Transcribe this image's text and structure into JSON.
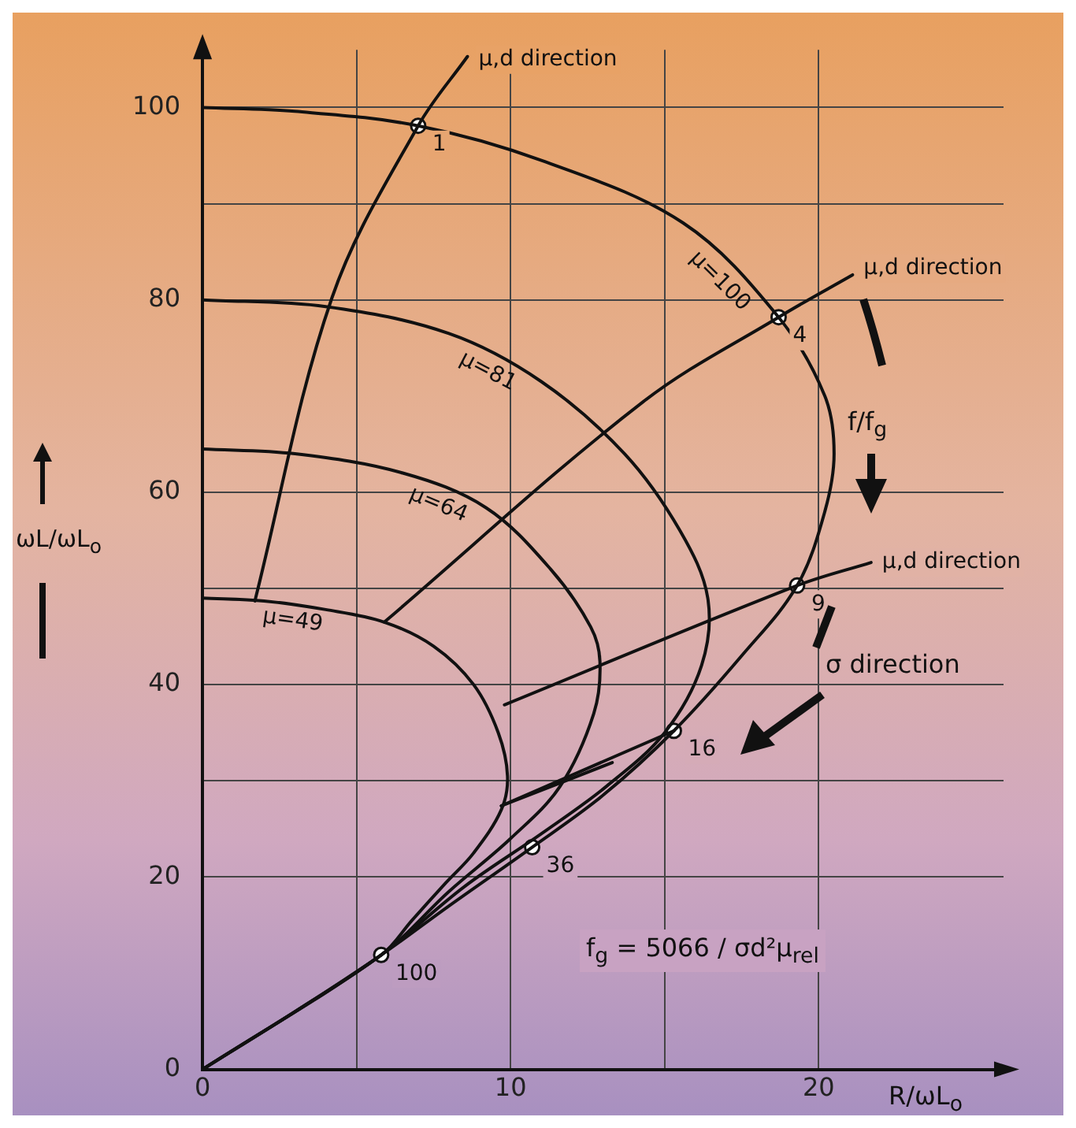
{
  "chart_data": {
    "type": "line",
    "xlabel": "R/ωL$_{o}$",
    "ylabel": "ωL/ωL$_{o}$",
    "xlim": [
      0,
      26
    ],
    "ylim": [
      0,
      106
    ],
    "xticks": [
      0,
      {
        "value": 5,
        "label": null
      },
      10,
      {
        "value": 15,
        "label": null
      },
      20
    ],
    "yticks": [
      0,
      20,
      {
        "value": 30,
        "label": null
      },
      40,
      {
        "value": 50,
        "label": null
      },
      60,
      80,
      {
        "value": 90,
        "label": null
      },
      100
    ],
    "grid": true,
    "legend": false,
    "series": [
      {
        "name": "μ=100",
        "color": "#111111",
        "marker": "none",
        "x": [
          0,
          3,
          7,
          11,
          15.6,
          18.7,
          20.2,
          20.5,
          20.2,
          19.3,
          17.5,
          15.3,
          13,
          10.7,
          8,
          5.8,
          3,
          0
        ],
        "values": [
          100,
          99.6,
          98.1,
          94.5,
          88,
          78.2,
          70,
          64,
          58,
          50.3,
          43,
          35.2,
          28.5,
          23.1,
          17,
          11.9,
          6,
          0
        ]
      },
      {
        "name": "μ=81",
        "color": "#111111",
        "marker": "none",
        "x": [
          0,
          4,
          8,
          11,
          13.7,
          15.5,
          16.4,
          16.2,
          15,
          13.1,
          11,
          8.5,
          5.8,
          3,
          0
        ],
        "values": [
          80,
          79.3,
          76.5,
          71.5,
          64,
          56,
          49,
          42,
          35,
          29.4,
          24.5,
          19,
          11.9,
          6,
          0
        ]
      },
      {
        "name": "μ=64",
        "color": "#111111",
        "marker": "none",
        "x": [
          0,
          3,
          6.5,
          9.2,
          11.3,
          12.6,
          12.9,
          12.7,
          11.6,
          10,
          8,
          5.8,
          0
        ],
        "values": [
          64.5,
          64,
          62,
          58.4,
          52,
          46,
          42.4,
          37,
          29.4,
          24,
          18.5,
          11.9,
          0
        ]
      },
      {
        "name": "μ=49",
        "color": "#111111",
        "marker": "none",
        "x": [
          0,
          2,
          4,
          5.9,
          7.5,
          8.8,
          9.6,
          9.9,
          9.7,
          8.8,
          7.9,
          6.8,
          5.8,
          0
        ],
        "values": [
          49,
          48.7,
          47.8,
          46.5,
          44,
          40,
          35,
          30.5,
          27,
          22.5,
          19.4,
          15.5,
          11.9,
          0
        ]
      },
      {
        "name": "μ,d direction",
        "color": "#111111",
        "marker": "none",
        "x": [
          1.7,
          4.2,
          7,
          8.6
        ],
        "values": [
          48.7,
          80.2,
          98.1,
          105.3
        ]
      },
      {
        "name": "μ,d direction",
        "color": "#111111",
        "marker": "none",
        "x": [
          5.9,
          14.3,
          18.7,
          21.1
        ],
        "values": [
          46.5,
          69.4,
          78.2,
          82.6
        ]
      },
      {
        "name": "μ,d direction",
        "color": "#111111",
        "marker": "none",
        "x": [
          9.8,
          19.3,
          21.7
        ],
        "values": [
          37.9,
          50.3,
          52.7
        ]
      },
      {
        "color": "#111111",
        "marker": "none",
        "x": [
          9.7,
          15.3
        ],
        "values": [
          27.4,
          35.2
        ]
      },
      {
        "color": "#111111",
        "marker": "none",
        "x": [
          9.7,
          13.3
        ],
        "values": [
          27.4,
          31.9
        ]
      },
      {
        "type": "scatter",
        "color": "#111111",
        "marker": "circle",
        "x": [
          7,
          18.7,
          19.3,
          15.3,
          10.7,
          5.8
        ],
        "values": [
          98.1,
          78.2,
          50.3,
          35.2,
          23.1,
          11.9
        ]
      }
    ],
    "annotations": [
      {
        "text": "1",
        "x": 7,
        "y": 98.1
      },
      {
        "text": "4",
        "x": 18.7,
        "y": 78.2
      },
      {
        "text": "9",
        "x": 19.3,
        "y": 50.3
      },
      {
        "text": "16",
        "x": 15.3,
        "y": 35.2
      },
      {
        "text": "36",
        "x": 10.7,
        "y": 23.1
      },
      {
        "text": "100",
        "x": 5.8,
        "y": 11.9
      },
      "f/f$_{g}$",
      "σ direction",
      "f$_{g}$ = 5066 / σd²μ$_{rel}$"
    ]
  }
}
